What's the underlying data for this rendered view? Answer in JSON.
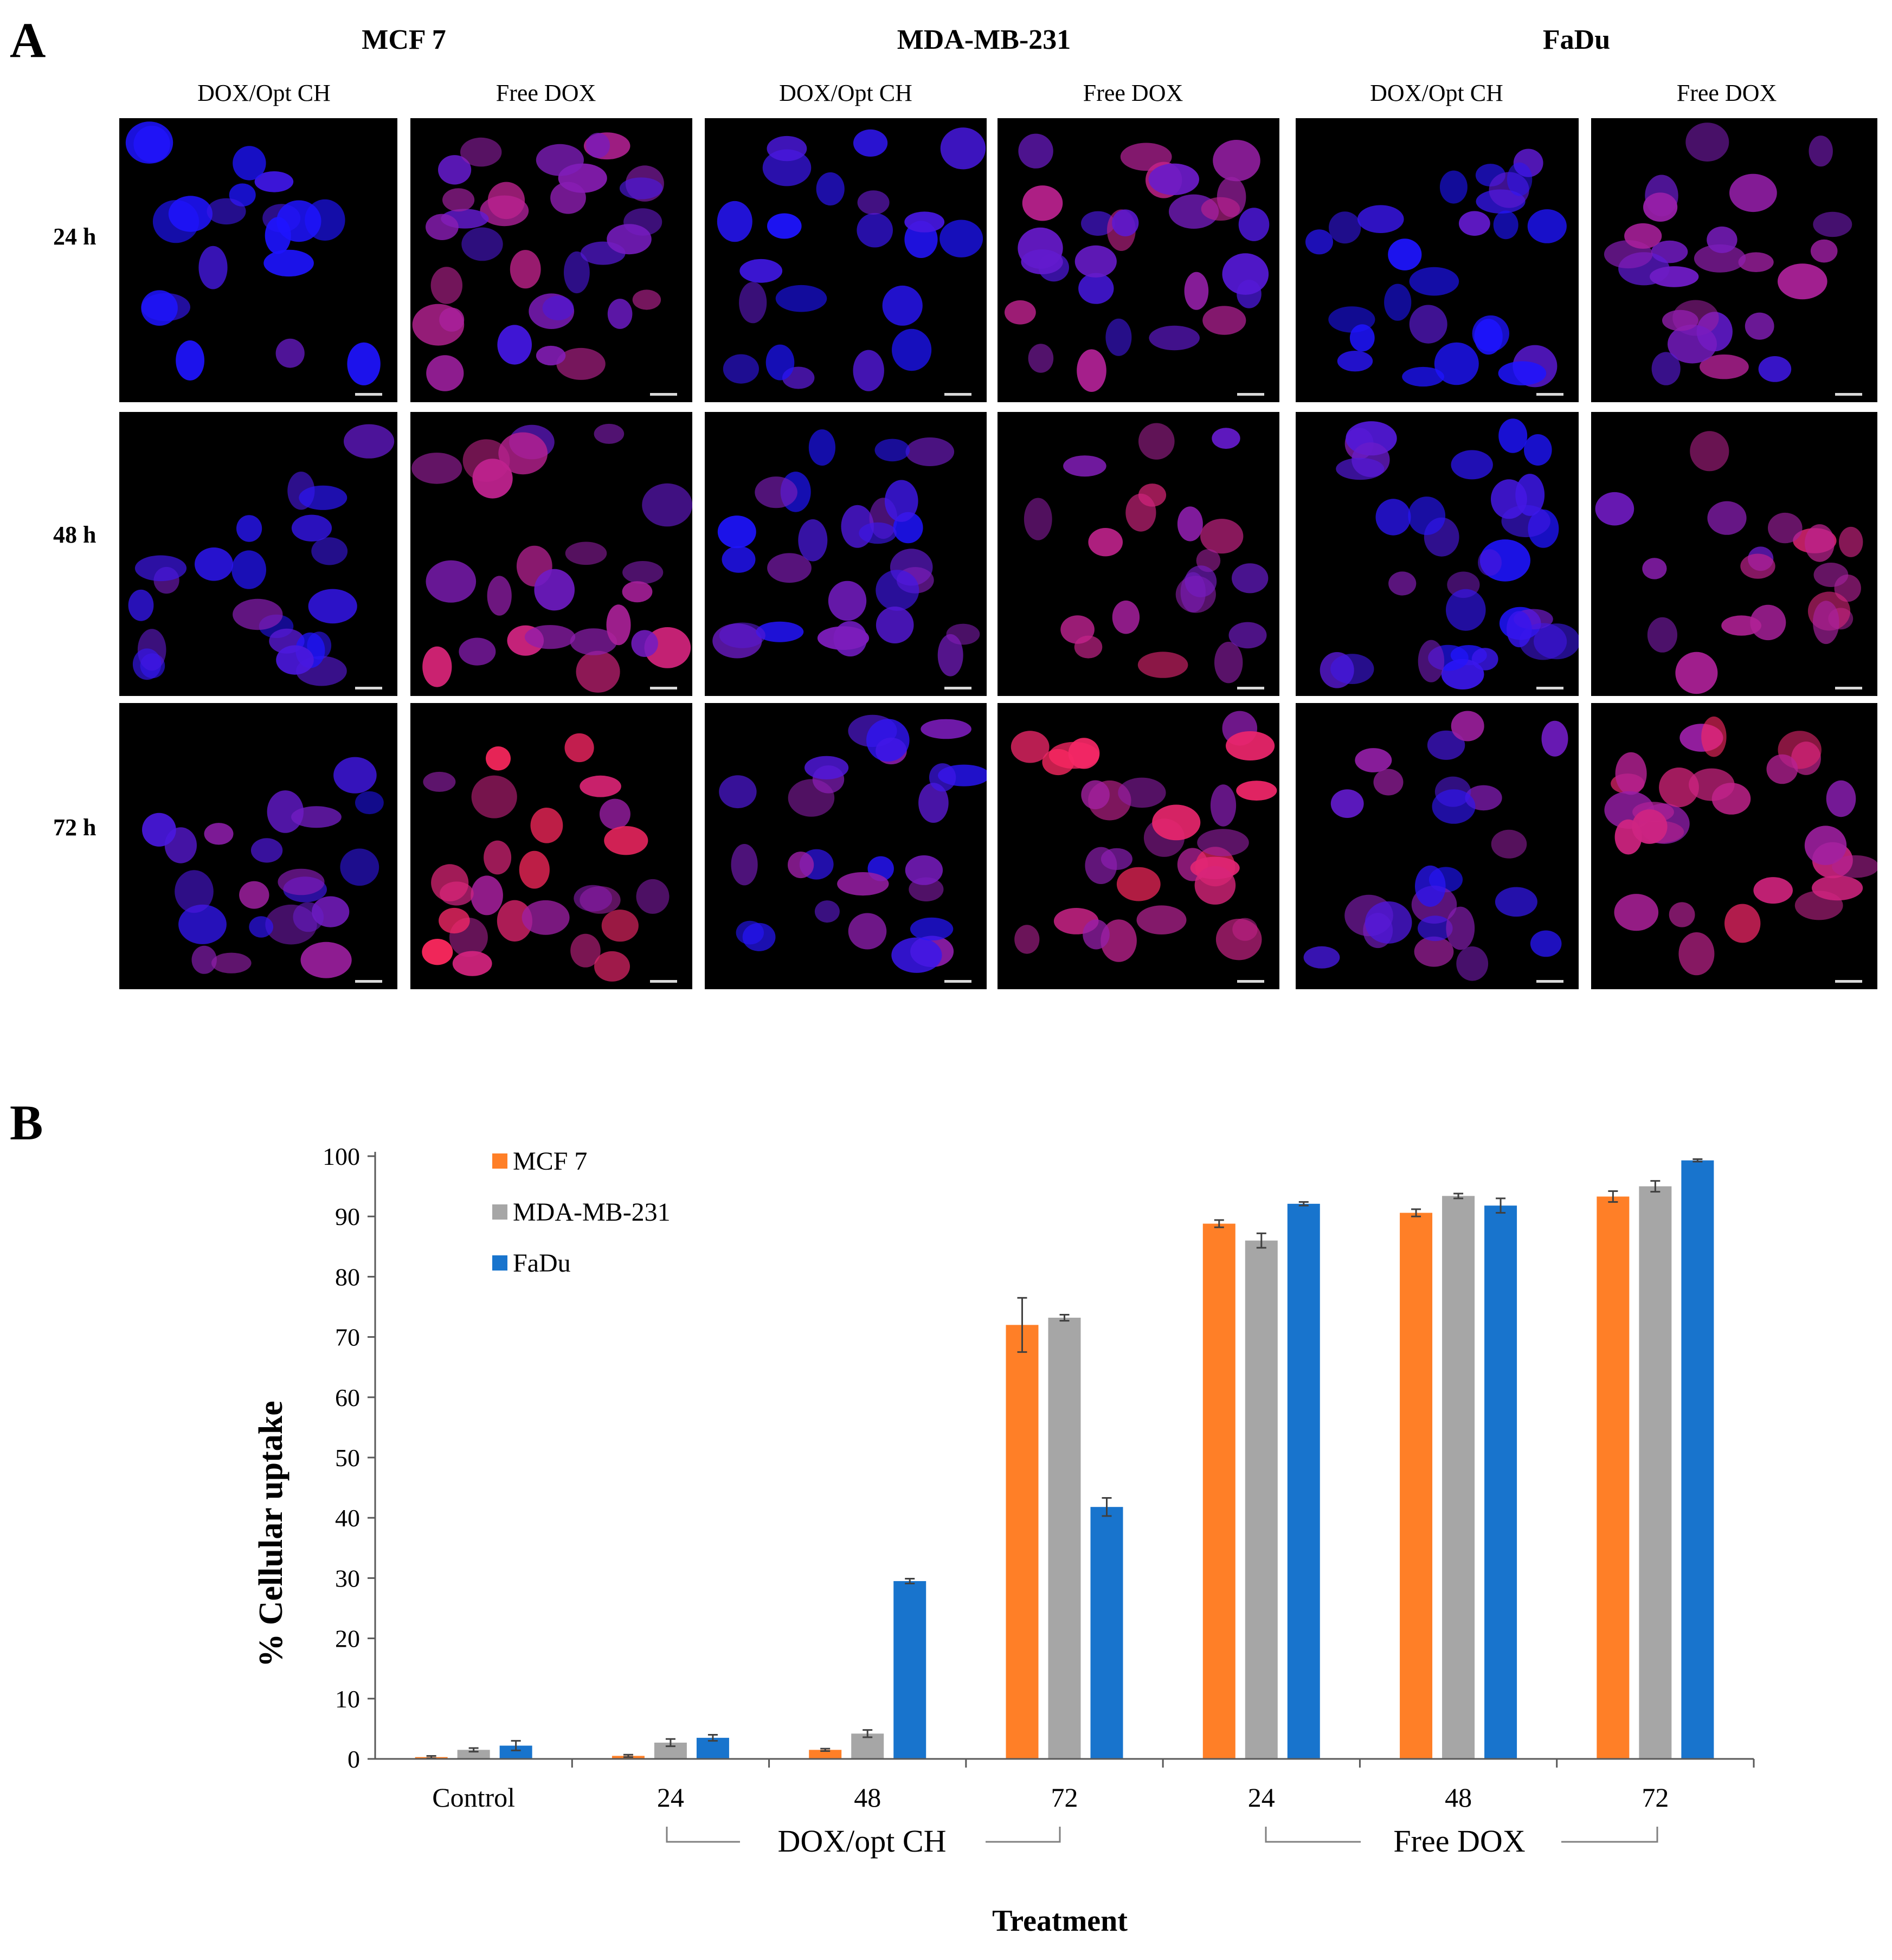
{
  "panel_a": {
    "letter": "A",
    "cell_lines": [
      {
        "name": "MCF 7",
        "columns": [
          "DOX/Opt CH",
          "Free DOX"
        ]
      },
      {
        "name": "MDA-MB-231",
        "columns": [
          "DOX/Opt CH",
          "Free DOX"
        ]
      },
      {
        "name": "FaDu",
        "columns": [
          "DOX/Opt CH",
          "Free DOX"
        ]
      }
    ],
    "rows": [
      "24 h",
      "48 h",
      "72 h"
    ],
    "colors": {
      "nucleus_blue": "#1a1aff",
      "dox_red": "#ff1a4d",
      "background": "#000000"
    }
  },
  "panel_b": {
    "letter": "B",
    "legend": [
      "MCF 7",
      "MDA-MB-231",
      "FaDu"
    ],
    "group_labels": [
      "DOX/opt CH",
      "Free DOX"
    ]
  },
  "chart_data": {
    "type": "bar",
    "categories": [
      "Control",
      "24",
      "48",
      "72",
      "24",
      "48",
      "72"
    ],
    "series": [
      {
        "name": "MCF 7",
        "color": "#ff7f27",
        "values": [
          0.3,
          0.5,
          1.5,
          72.0,
          88.8,
          90.6,
          93.3
        ],
        "errors": [
          0.2,
          0.2,
          0.2,
          4.5,
          0.6,
          0.6,
          0.9
        ]
      },
      {
        "name": "MDA-MB-231",
        "color": "#a6a6a6",
        "values": [
          1.5,
          2.7,
          4.2,
          73.2,
          86.0,
          93.4,
          95.0
        ],
        "errors": [
          0.3,
          0.6,
          0.6,
          0.5,
          1.2,
          0.4,
          0.9
        ]
      },
      {
        "name": "FaDu",
        "color": "#1874cd",
        "values": [
          2.2,
          3.5,
          29.5,
          41.8,
          92.1,
          91.8,
          99.3
        ],
        "errors": [
          0.8,
          0.5,
          0.4,
          1.5,
          0.3,
          1.2,
          0.2
        ]
      }
    ],
    "xlabel": "Treatment",
    "ylabel": "% Cellular uptake",
    "ylim": [
      0,
      100
    ],
    "yticks": [
      0,
      10,
      20,
      30,
      40,
      50,
      60,
      70,
      80,
      90,
      100
    ],
    "legend_position": "top-left",
    "grid": false
  }
}
